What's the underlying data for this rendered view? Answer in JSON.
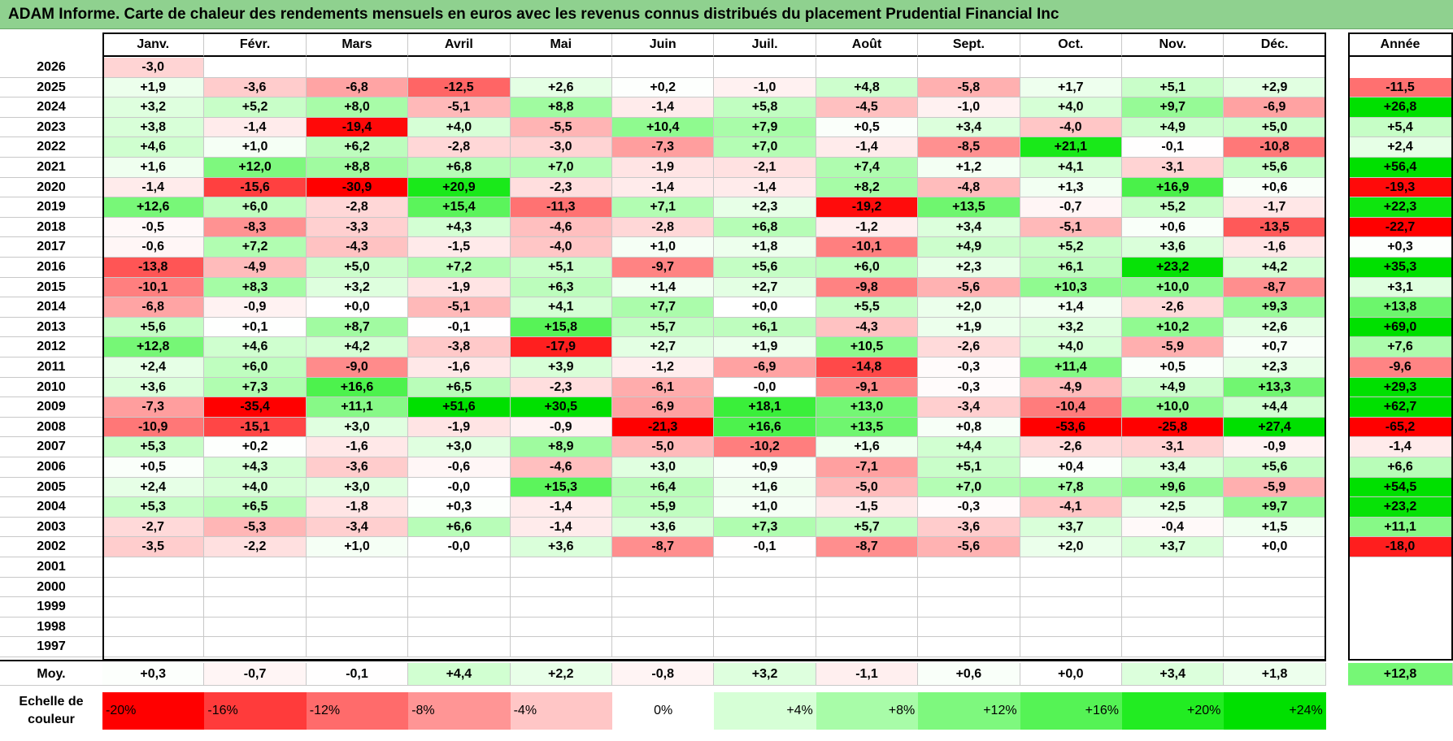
{
  "title": "ADAM Informe. Carte de chaleur des rendements mensuels en euros avec les revenus connus distribués du placement Prudential Financial Inc",
  "chart_data": {
    "type": "heatmap",
    "title": "ADAM Informe. Carte de chaleur des rendements mensuels en euros avec les revenus connus distribués du placement Prudential Financial Inc",
    "months": [
      "Janv.",
      "Févr.",
      "Mars",
      "Avril",
      "Mai",
      "Juin",
      "Juil.",
      "Août",
      "Sept.",
      "Oct.",
      "Nov.",
      "Déc."
    ],
    "year_header": "Année",
    "years": [
      "2026",
      "2025",
      "2024",
      "2023",
      "2022",
      "2021",
      "2020",
      "2019",
      "2018",
      "2017",
      "2016",
      "2015",
      "2014",
      "2013",
      "2012",
      "2011",
      "2010",
      "2009",
      "2008",
      "2007",
      "2006",
      "2005",
      "2004",
      "2003",
      "2002",
      "2001",
      "2000",
      "1999",
      "1998",
      "1997"
    ],
    "values": [
      [
        "-3,0",
        "",
        "",
        "",
        "",
        "",
        "",
        "",
        "",
        "",
        "",
        ""
      ],
      [
        "+1,9",
        "-3,6",
        "-6,8",
        "-12,5",
        "+2,6",
        "+0,2",
        "-1,0",
        "+4,8",
        "-5,8",
        "+1,7",
        "+5,1",
        "+2,9"
      ],
      [
        "+3,2",
        "+5,2",
        "+8,0",
        "-5,1",
        "+8,8",
        "-1,4",
        "+5,8",
        "-4,5",
        "-1,0",
        "+4,0",
        "+9,7",
        "-6,9"
      ],
      [
        "+3,8",
        "-1,4",
        "-19,4",
        "+4,0",
        "-5,5",
        "+10,4",
        "+7,9",
        "+0,5",
        "+3,4",
        "-4,0",
        "+4,9",
        "+5,0"
      ],
      [
        "+4,6",
        "+1,0",
        "+6,2",
        "-2,8",
        "-3,0",
        "-7,3",
        "+7,0",
        "-1,4",
        "-8,5",
        "+21,1",
        "-0,1",
        "-10,8"
      ],
      [
        "+1,6",
        "+12,0",
        "+8,8",
        "+6,8",
        "+7,0",
        "-1,9",
        "-2,1",
        "+7,4",
        "+1,2",
        "+4,1",
        "-3,1",
        "+5,6"
      ],
      [
        "-1,4",
        "-15,6",
        "-30,9",
        "+20,9",
        "-2,3",
        "-1,4",
        "-1,4",
        "+8,2",
        "-4,8",
        "+1,3",
        "+16,9",
        "+0,6"
      ],
      [
        "+12,6",
        "+6,0",
        "-2,8",
        "+15,4",
        "-11,3",
        "+7,1",
        "+2,3",
        "-19,2",
        "+13,5",
        "-0,7",
        "+5,2",
        "-1,7"
      ],
      [
        "-0,5",
        "-8,3",
        "-3,3",
        "+4,3",
        "-4,6",
        "-2,8",
        "+6,8",
        "-1,2",
        "+3,4",
        "-5,1",
        "+0,6",
        "-13,5"
      ],
      [
        "-0,6",
        "+7,2",
        "-4,3",
        "-1,5",
        "-4,0",
        "+1,0",
        "+1,8",
        "-10,1",
        "+4,9",
        "+5,2",
        "+3,6",
        "-1,6"
      ],
      [
        "-13,8",
        "-4,9",
        "+5,0",
        "+7,2",
        "+5,1",
        "-9,7",
        "+5,6",
        "+6,0",
        "+2,3",
        "+6,1",
        "+23,2",
        "+4,2"
      ],
      [
        "-10,1",
        "+8,3",
        "+3,2",
        "-1,9",
        "+6,3",
        "+1,4",
        "+2,7",
        "-9,8",
        "-5,6",
        "+10,3",
        "+10,0",
        "-8,7"
      ],
      [
        "-6,8",
        "-0,9",
        "+0,0",
        "-5,1",
        "+4,1",
        "+7,7",
        "+0,0",
        "+5,5",
        "+2,0",
        "+1,4",
        "-2,6",
        "+9,3"
      ],
      [
        "+5,6",
        "+0,1",
        "+8,7",
        "-0,1",
        "+15,8",
        "+5,7",
        "+6,1",
        "-4,3",
        "+1,9",
        "+3,2",
        "+10,2",
        "+2,6"
      ],
      [
        "+12,8",
        "+4,6",
        "+4,2",
        "-3,8",
        "-17,9",
        "+2,7",
        "+1,9",
        "+10,5",
        "-2,6",
        "+4,0",
        "-5,9",
        "+0,7"
      ],
      [
        "+2,4",
        "+6,0",
        "-9,0",
        "-1,6",
        "+3,9",
        "-1,2",
        "-6,9",
        "-14,8",
        "-0,3",
        "+11,4",
        "+0,5",
        "+2,3"
      ],
      [
        "+3,6",
        "+7,3",
        "+16,6",
        "+6,5",
        "-2,3",
        "-6,1",
        "-0,0",
        "-9,1",
        "-0,3",
        "-4,9",
        "+4,9",
        "+13,3"
      ],
      [
        "-7,3",
        "-35,4",
        "+11,1",
        "+51,6",
        "+30,5",
        "-6,9",
        "+18,1",
        "+13,0",
        "-3,4",
        "-10,4",
        "+10,0",
        "+4,4"
      ],
      [
        "-10,9",
        "-15,1",
        "+3,0",
        "-1,9",
        "-0,9",
        "-21,3",
        "+16,6",
        "+13,5",
        "+0,8",
        "-53,6",
        "-25,8",
        "+27,4"
      ],
      [
        "+5,3",
        "+0,2",
        "-1,6",
        "+3,0",
        "+8,9",
        "-5,0",
        "-10,2",
        "+1,6",
        "+4,4",
        "-2,6",
        "-3,1",
        "-0,9"
      ],
      [
        "+0,5",
        "+4,3",
        "-3,6",
        "-0,6",
        "-4,6",
        "+3,0",
        "+0,9",
        "-7,1",
        "+5,1",
        "+0,4",
        "+3,4",
        "+5,6"
      ],
      [
        "+2,4",
        "+4,0",
        "+3,0",
        "-0,0",
        "+15,3",
        "+6,4",
        "+1,6",
        "-5,0",
        "+7,0",
        "+7,8",
        "+9,6",
        "-5,9"
      ],
      [
        "+5,3",
        "+6,5",
        "-1,8",
        "+0,3",
        "-1,4",
        "+5,9",
        "+1,0",
        "-1,5",
        "-0,3",
        "-4,1",
        "+2,5",
        "+9,7"
      ],
      [
        "-2,7",
        "-5,3",
        "-3,4",
        "+6,6",
        "-1,4",
        "+3,6",
        "+7,3",
        "+5,7",
        "-3,6",
        "+3,7",
        "-0,4",
        "+1,5"
      ],
      [
        "-3,5",
        "-2,2",
        "+1,0",
        "-0,0",
        "+3,6",
        "-8,7",
        "-0,1",
        "-8,7",
        "-5,6",
        "+2,0",
        "+3,7",
        "+0,0"
      ],
      [
        "",
        "",
        "",
        "",
        "",
        "",
        "",
        "",
        "",
        "",
        "",
        ""
      ],
      [
        "",
        "",
        "",
        "",
        "",
        "",
        "",
        "",
        "",
        "",
        "",
        ""
      ],
      [
        "",
        "",
        "",
        "",
        "",
        "",
        "",
        "",
        "",
        "",
        "",
        ""
      ],
      [
        "",
        "",
        "",
        "",
        "",
        "",
        "",
        "",
        "",
        "",
        "",
        ""
      ],
      [
        "",
        "",
        "",
        "",
        "",
        "",
        "",
        "",
        "",
        "",
        "",
        ""
      ]
    ],
    "annual": [
      "",
      "-11,5",
      "+26,8",
      "+5,4",
      "+2,4",
      "+56,4",
      "-19,3",
      "+22,3",
      "-22,7",
      "+0,3",
      "+35,3",
      "+3,1",
      "+13,8",
      "+69,0",
      "+7,6",
      "-9,6",
      "+29,3",
      "+62,7",
      "-65,2",
      "-1,4",
      "+6,6",
      "+54,5",
      "+23,2",
      "+11,1",
      "-18,0",
      "",
      "",
      "",
      "",
      ""
    ],
    "average_label": "Moy.",
    "average": [
      "+0,3",
      "-0,7",
      "-0,1",
      "+4,4",
      "+2,2",
      "-0,8",
      "+3,2",
      "-1,1",
      "+0,6",
      "+0,0",
      "+3,4",
      "+1,8"
    ],
    "average_annual": "+12,8",
    "scale_label": "Echelle de couleur",
    "scale": [
      {
        "label": "-20%",
        "value": -20,
        "color": "#ff0000"
      },
      {
        "label": "-16%",
        "value": -16,
        "color": "#ff3b3b"
      },
      {
        "label": "-12%",
        "value": -12,
        "color": "#ff6b6b"
      },
      {
        "label": "-8%",
        "value": -8,
        "color": "#ff9595"
      },
      {
        "label": "-4%",
        "value": -4,
        "color": "#ffc6c6"
      },
      {
        "label": "0%",
        "value": 0,
        "color": "#ffffff"
      },
      {
        "label": "+4%",
        "value": 4,
        "color": "#d6ffd6"
      },
      {
        "label": "+8%",
        "value": 8,
        "color": "#a8fca8"
      },
      {
        "label": "+12%",
        "value": 12,
        "color": "#7ef87e"
      },
      {
        "label": "+16%",
        "value": 16,
        "color": "#55f355"
      },
      {
        "label": "+20%",
        "value": 20,
        "color": "#22ec22"
      },
      {
        "label": "+24%",
        "value": 24,
        "color": "#00e000"
      }
    ]
  }
}
